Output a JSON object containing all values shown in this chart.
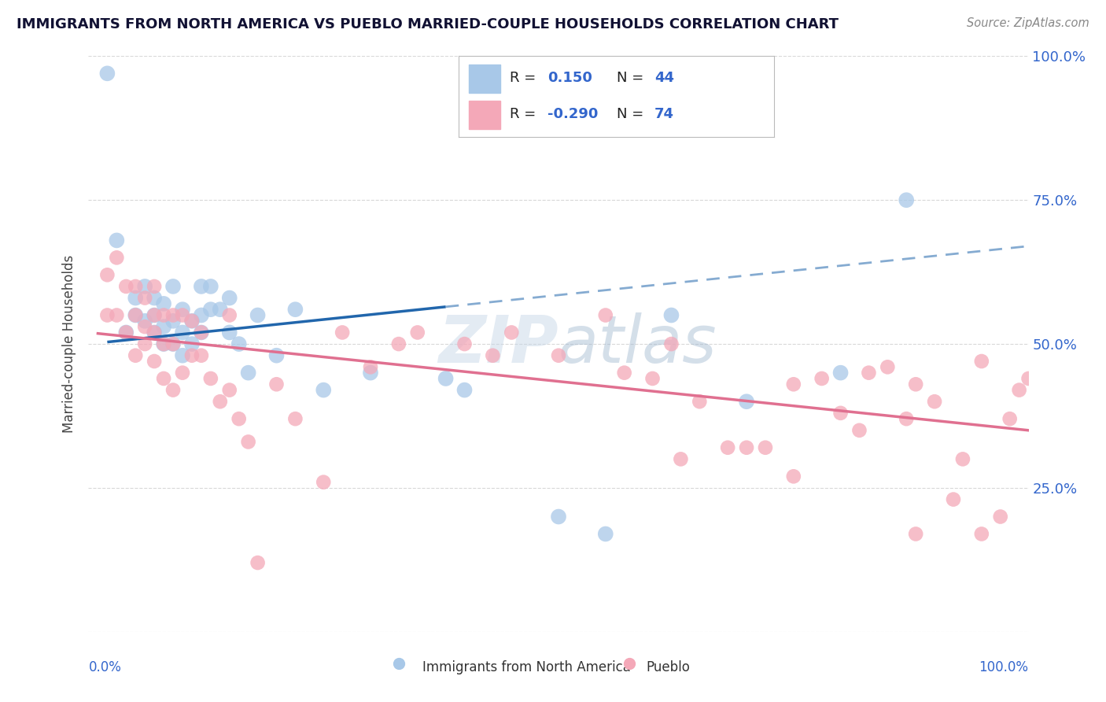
{
  "title": "IMMIGRANTS FROM NORTH AMERICA VS PUEBLO MARRIED-COUPLE HOUSEHOLDS CORRELATION CHART",
  "source_text": "Source: ZipAtlas.com",
  "ylabel": "Married-couple Households",
  "xlim": [
    0.0,
    1.0
  ],
  "ylim": [
    0.0,
    1.0
  ],
  "yticks": [
    0.0,
    0.25,
    0.5,
    0.75,
    1.0
  ],
  "ytick_labels": [
    "",
    "25.0%",
    "50.0%",
    "75.0%",
    "100.0%"
  ],
  "watermark": "ZIPatlas",
  "blue_R": 0.15,
  "blue_N": 44,
  "pink_R": -0.29,
  "pink_N": 74,
  "blue_color": "#a8c8e8",
  "pink_color": "#f4a8b8",
  "blue_line_color": "#2166ac",
  "pink_line_color": "#e07090",
  "legend_blue_label": "Immigrants from North America",
  "legend_pink_label": "Pueblo",
  "blue_scatter_x": [
    0.02,
    0.03,
    0.04,
    0.05,
    0.05,
    0.06,
    0.06,
    0.07,
    0.07,
    0.07,
    0.08,
    0.08,
    0.08,
    0.09,
    0.09,
    0.09,
    0.1,
    0.1,
    0.1,
    0.11,
    0.11,
    0.12,
    0.12,
    0.12,
    0.13,
    0.13,
    0.14,
    0.15,
    0.15,
    0.16,
    0.17,
    0.18,
    0.2,
    0.22,
    0.25,
    0.3,
    0.38,
    0.4,
    0.5,
    0.55,
    0.62,
    0.7,
    0.8,
    0.87
  ],
  "blue_scatter_y": [
    0.97,
    0.68,
    0.52,
    0.55,
    0.58,
    0.54,
    0.6,
    0.52,
    0.55,
    0.58,
    0.5,
    0.53,
    0.57,
    0.5,
    0.54,
    0.6,
    0.48,
    0.52,
    0.56,
    0.5,
    0.54,
    0.52,
    0.55,
    0.6,
    0.56,
    0.6,
    0.56,
    0.52,
    0.58,
    0.5,
    0.45,
    0.55,
    0.48,
    0.56,
    0.42,
    0.45,
    0.44,
    0.42,
    0.2,
    0.17,
    0.55,
    0.4,
    0.45,
    0.75
  ],
  "pink_scatter_x": [
    0.02,
    0.02,
    0.03,
    0.03,
    0.04,
    0.04,
    0.05,
    0.05,
    0.05,
    0.06,
    0.06,
    0.06,
    0.07,
    0.07,
    0.07,
    0.07,
    0.08,
    0.08,
    0.08,
    0.09,
    0.09,
    0.09,
    0.1,
    0.1,
    0.11,
    0.11,
    0.12,
    0.12,
    0.13,
    0.14,
    0.15,
    0.15,
    0.16,
    0.17,
    0.18,
    0.2,
    0.22,
    0.25,
    0.27,
    0.3,
    0.33,
    0.35,
    0.4,
    0.43,
    0.45,
    0.5,
    0.55,
    0.57,
    0.6,
    0.62,
    0.63,
    0.65,
    0.68,
    0.7,
    0.72,
    0.75,
    0.75,
    0.78,
    0.8,
    0.82,
    0.83,
    0.85,
    0.87,
    0.88,
    0.88,
    0.9,
    0.92,
    0.93,
    0.95,
    0.95,
    0.97,
    0.98,
    0.99,
    1.0
  ],
  "pink_scatter_y": [
    0.62,
    0.55,
    0.65,
    0.55,
    0.6,
    0.52,
    0.55,
    0.48,
    0.6,
    0.5,
    0.53,
    0.58,
    0.47,
    0.52,
    0.55,
    0.6,
    0.44,
    0.5,
    0.55,
    0.42,
    0.5,
    0.55,
    0.45,
    0.55,
    0.48,
    0.54,
    0.48,
    0.52,
    0.44,
    0.4,
    0.55,
    0.42,
    0.37,
    0.33,
    0.12,
    0.43,
    0.37,
    0.26,
    0.52,
    0.46,
    0.5,
    0.52,
    0.5,
    0.48,
    0.52,
    0.48,
    0.55,
    0.45,
    0.44,
    0.5,
    0.3,
    0.4,
    0.32,
    0.32,
    0.32,
    0.27,
    0.43,
    0.44,
    0.38,
    0.35,
    0.45,
    0.46,
    0.37,
    0.43,
    0.17,
    0.4,
    0.23,
    0.3,
    0.47,
    0.17,
    0.2,
    0.37,
    0.42,
    0.44
  ],
  "background_color": "#ffffff",
  "grid_color": "#d8d8d8"
}
